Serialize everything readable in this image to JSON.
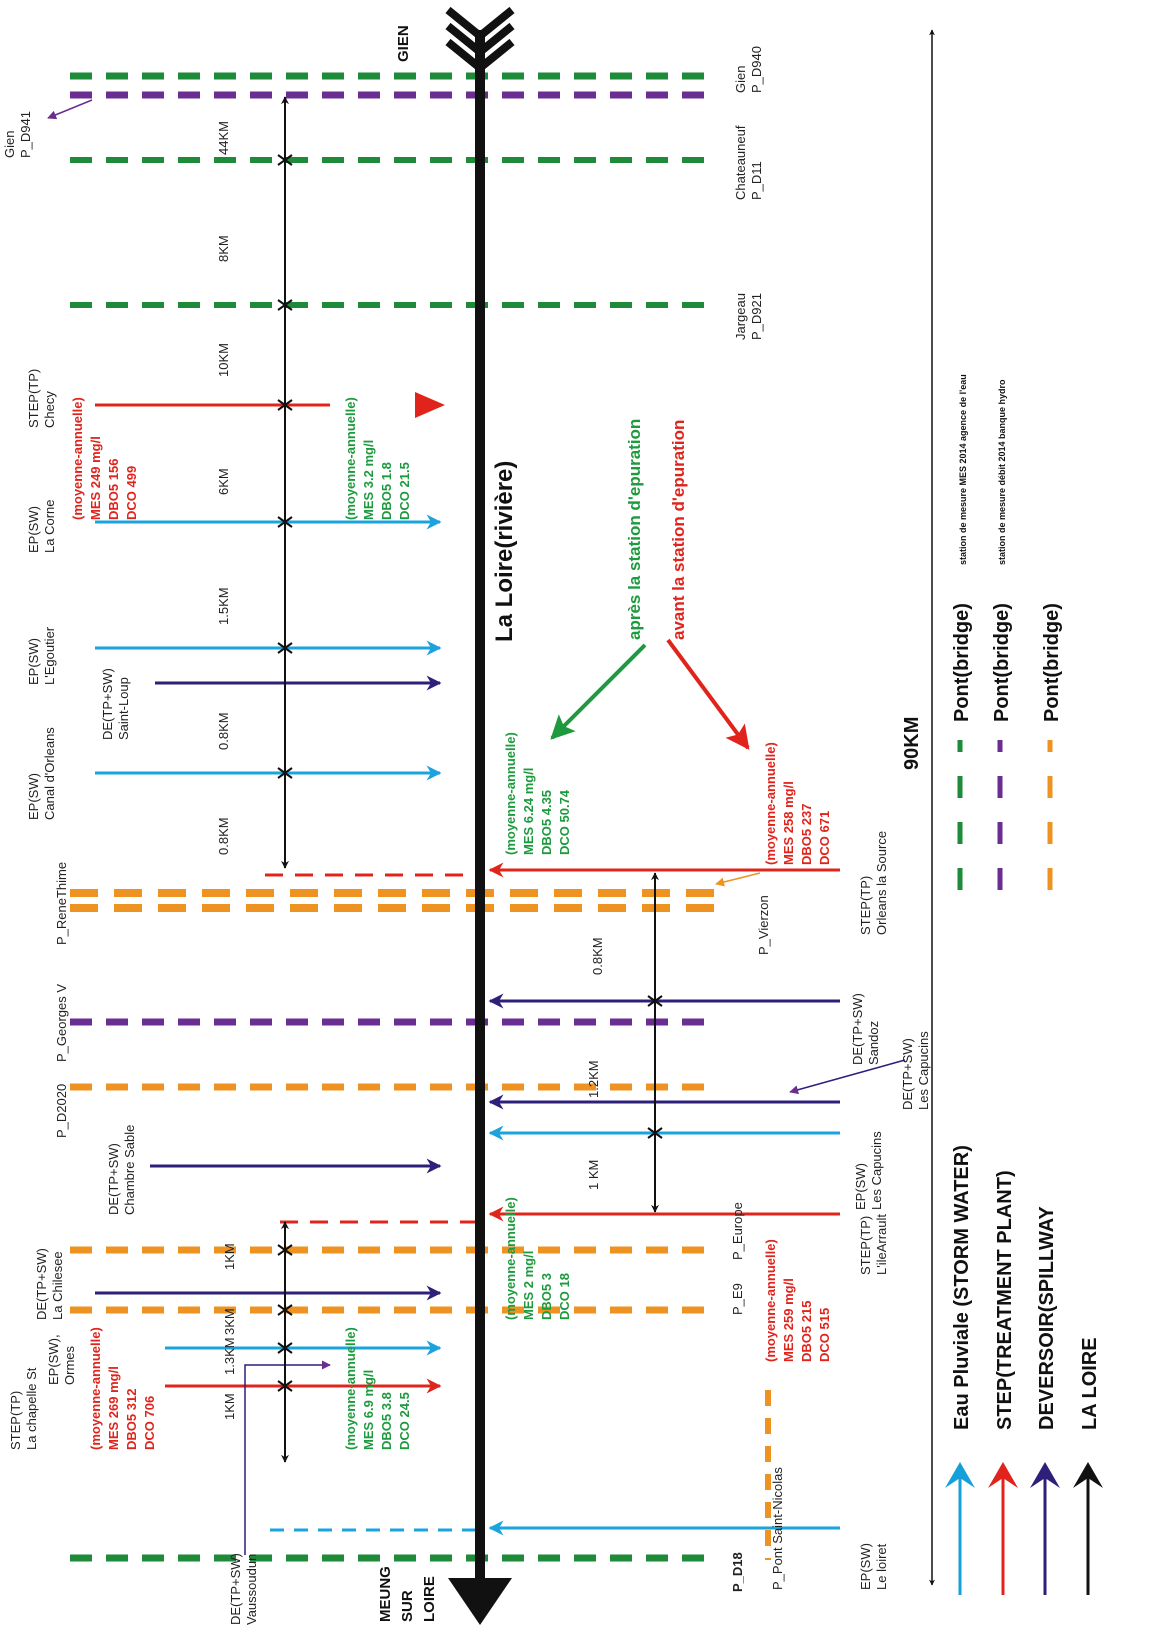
{
  "river": {
    "title": "La Loire(rivière)",
    "upstream": "GIEN",
    "downstream": [
      "MEUNG",
      "SUR",
      "LOIRE"
    ]
  },
  "total_distance": "90KM",
  "colors": {
    "storm": "#1aa3dc",
    "treatment": "#e0241c",
    "deversoir": "#2e1f7a",
    "river": "#111111",
    "green": "#1e8a3a",
    "purple": "#6a2d91",
    "orange": "#ee9322",
    "blue_legend": "#16a0d9",
    "quality_green": "#1e9a3e",
    "quality_red": "#e0241c"
  },
  "bridges_left": [
    {
      "label": "Gien\nP_D941"
    },
    {
      "label": "P_ReneThime"
    },
    {
      "label": "P_Georges V"
    },
    {
      "label": "P_D2020"
    }
  ],
  "bridges_right": [
    {
      "label": "Gien\nP_D940"
    },
    {
      "label": "Chateauneuf\nP_D11"
    },
    {
      "label": "Jargeau\nP_D921"
    },
    {
      "label": "P_Vierzon"
    },
    {
      "label": "P_Europe"
    },
    {
      "label": "P_E9"
    },
    {
      "label": "P_D18"
    },
    {
      "label": "P_Pont Saint-Nicolas"
    }
  ],
  "sources_left": [
    {
      "label": "STEP(TP)\nChecy"
    },
    {
      "label": "EP(SW)\nLa Corne"
    },
    {
      "label": "EP(SW)\nL'Egoutier"
    },
    {
      "label": "DE(TP+SW)\nSaint-Loup"
    },
    {
      "label": "EP(SW)\nCanal d'Orleans"
    },
    {
      "label": "DE(TP+SW)\nChambre Sable"
    },
    {
      "label": "DE(TP+SW)\nLa Chilesee"
    },
    {
      "label": "EP(SW),\nOrmes"
    },
    {
      "label": "STEP(TP)\nLa chapelle St"
    },
    {
      "label": "DE(TP+SW)\nVaussoudun"
    }
  ],
  "sources_right": [
    {
      "label": "STEP(TP)\nOrleans la Source"
    },
    {
      "label": "DE(TP+SW)\nSandoz"
    },
    {
      "label": "DE(TP+SW)\nLes Capucins"
    },
    {
      "label": "EP(SW)\nLes Capucins"
    },
    {
      "label": "STEP(TP)\nL'ileArrault"
    },
    {
      "label": "EP(SW)\nLe loiret"
    }
  ],
  "distances_left": [
    "44KM",
    "8KM",
    "10KM",
    "6KM",
    "1.5KM",
    "0.8KM",
    "0.8KM",
    "1KM",
    "3KM",
    "1.3KM",
    "1KM"
  ],
  "distances_right": [
    "0.8KM",
    "1.2KM",
    "1 KM"
  ],
  "quality_blocks": [
    {
      "kind": "red",
      "lines": [
        "(moyenne-annuelle)",
        "MES   249 mg/l",
        "DBO5  156",
        "DCO   499"
      ]
    },
    {
      "kind": "green",
      "lines": [
        "(moyenne-annuelle)",
        "MES   3.2 mg/l",
        "DBO5  1.8",
        "DCO   21.5"
      ]
    },
    {
      "kind": "green",
      "lines": [
        "(moyenne-annuelle)",
        "MES   6.24 mg/l",
        "DBO5  4.35",
        "DCO   50.74"
      ]
    },
    {
      "kind": "red",
      "lines": [
        "(moyenne-annuelle)",
        "MES   258 mg/l",
        "DBO5  237",
        "DCO   671"
      ]
    },
    {
      "kind": "green",
      "lines": [
        "(moyenne-annuelle)",
        "MES   2 mg/l",
        "DBO5  3",
        "DCO   18"
      ]
    },
    {
      "kind": "red",
      "lines": [
        "(moyenne-annuelle)",
        "MES   259 mg/l",
        "DBO5  215",
        "DCO   515"
      ]
    },
    {
      "kind": "green",
      "lines": [
        "(moyenne-annuelle)",
        "MES   6.9 mg/l",
        "DBO5  3.8",
        "DCO   24.5"
      ]
    },
    {
      "kind": "red",
      "lines": [
        "(moyenne-annuelle)",
        "MES   269 mg/l",
        "DBO5  312",
        "DCO   706"
      ]
    }
  ],
  "station_labels": {
    "after": "après la station d'epuration",
    "before": "avant la station d'epuration"
  },
  "legend": {
    "bridges": [
      {
        "label": "Pont(bridge)",
        "note": "station de mesure MES 2014 agence de l'eau"
      },
      {
        "label": "Pont(bridge)",
        "note": "station de mesure débit 2014 banque hydro"
      },
      {
        "label": "Pont(bridge)",
        "note": ""
      }
    ],
    "arrows": [
      {
        "label": "Eau Pluviale (STORM WATER)"
      },
      {
        "label": "STEP(TREATMENT PLANT)"
      },
      {
        "label": "DEVERSOIR(SPILLWAY"
      },
      {
        "label": "LA LOIRE"
      }
    ]
  }
}
